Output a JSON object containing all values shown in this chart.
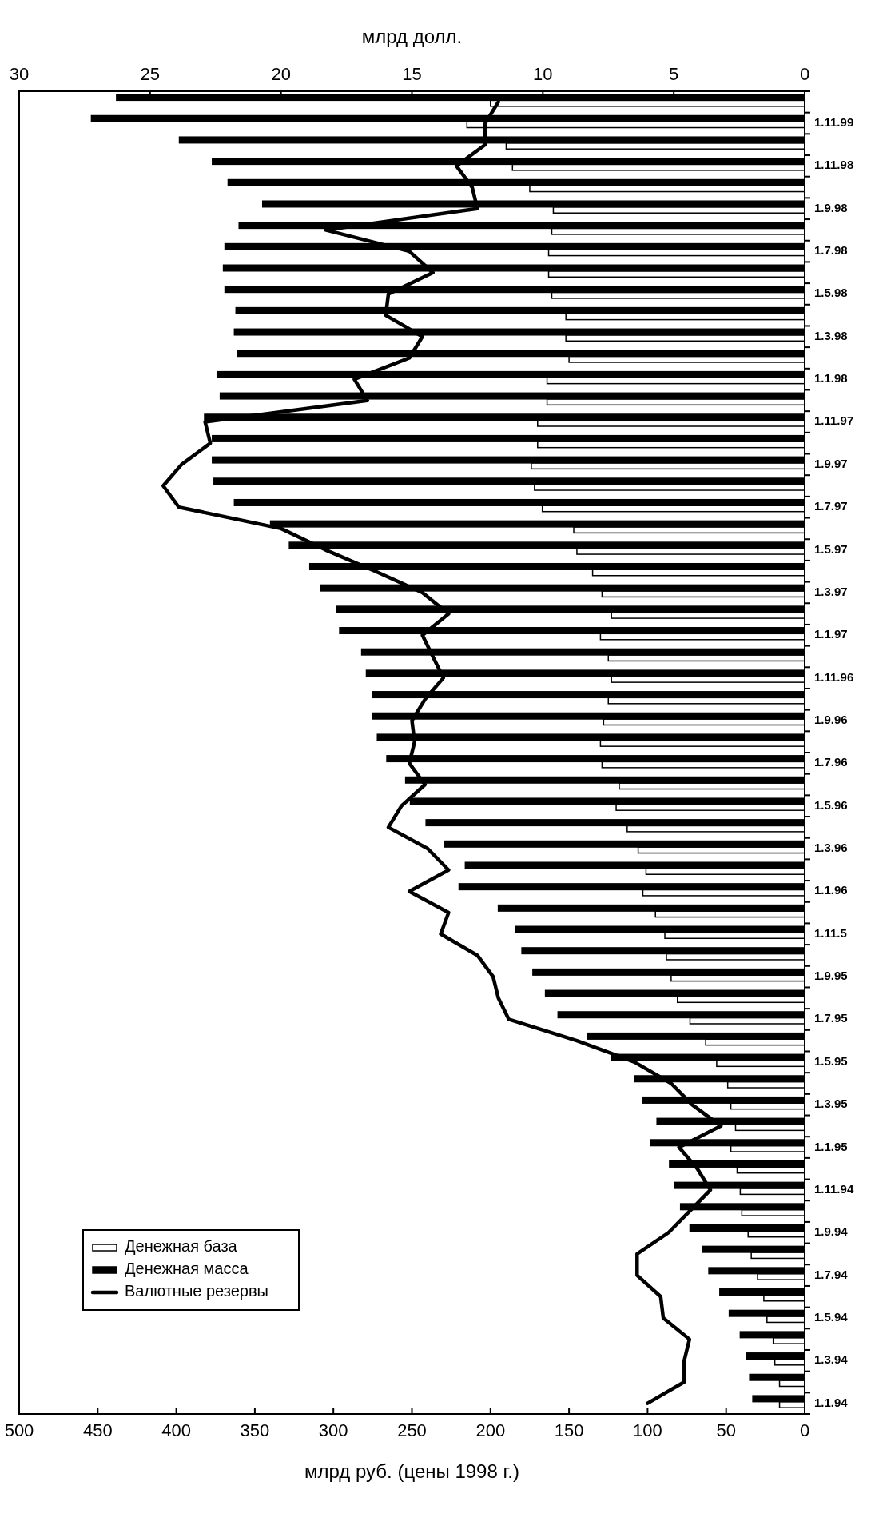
{
  "chart_data": {
    "type": "bar",
    "orientation": "horizontal",
    "xlabel": "млрд  руб. (цены 1998 г.)",
    "x2label": "млрд  долл.",
    "categories": [
      null,
      "1.11.99",
      null,
      "1.11.98",
      null,
      "1.9.98",
      null,
      "1.7.98",
      null,
      "1.5.98",
      null,
      "1.3.98",
      null,
      "1.1.98",
      null,
      "1.11.97",
      null,
      "1.9.97",
      null,
      "1.7.97",
      null,
      "1.5.97",
      null,
      "1.3.97",
      null,
      "1.1.97",
      null,
      "1.11.96",
      null,
      "1.9.96",
      null,
      "1.7.96",
      null,
      "1.5.96",
      null,
      "1.3.96",
      null,
      "1.1.96",
      null,
      "1.11.5",
      null,
      "1.9.95",
      null,
      "1.7.95",
      null,
      "1.5.95",
      null,
      "1.3.95",
      null,
      "1.1.95",
      null,
      "1.11.94",
      null,
      "1.9.94",
      null,
      "1.7.94",
      null,
      "1.5.94",
      null,
      "1.3.94",
      null,
      "1.1.94"
    ],
    "series": [
      {
        "name": "Денежная база",
        "color": "#ffffff",
        "values": [
          200,
          215,
          190,
          186,
          175,
          160,
          161,
          163,
          163,
          161,
          152,
          152,
          150,
          164,
          164,
          170,
          170,
          174,
          172,
          167,
          147,
          145,
          135,
          129,
          123,
          130,
          125,
          123,
          125,
          128,
          130,
          129,
          118,
          120,
          113,
          106,
          101,
          103,
          95,
          89,
          88,
          85,
          81,
          73,
          63,
          56,
          49,
          47,
          44,
          47,
          43,
          41,
          40,
          36,
          34,
          30,
          26,
          24,
          20,
          19,
          16,
          16
        ]
      },
      {
        "name": "Денежная масса",
        "color": "#000000",
        "values": [
          438,
          454,
          398,
          377,
          367,
          345,
          360,
          369,
          370,
          369,
          362,
          363,
          361,
          374,
          372,
          382,
          377,
          377,
          376,
          363,
          340,
          328,
          315,
          308,
          298,
          296,
          282,
          279,
          275,
          275,
          272,
          266,
          254,
          251,
          241,
          229,
          216,
          220,
          195,
          184,
          180,
          173,
          165,
          157,
          138,
          123,
          108,
          103,
          94,
          98,
          86,
          83,
          79,
          73,
          65,
          61,
          54,
          48,
          41,
          37,
          35,
          33
        ]
      },
      {
        "name": "Валютные резервы",
        "type": "line",
        "axis": "x2",
        "color": "#000000",
        "values": [
          11.7,
          12.2,
          12.2,
          13.3,
          12.7,
          12.5,
          18.3,
          15.1,
          14.2,
          15.9,
          16.0,
          14.6,
          15.1,
          17.2,
          16.7,
          22.9,
          22.7,
          23.8,
          24.5,
          23.9,
          20.0,
          18.3,
          16.4,
          14.6,
          13.6,
          14.6,
          14.2,
          13.8,
          14.5,
          15.0,
          14.9,
          15.1,
          14.5,
          15.4,
          15.9,
          14.4,
          13.6,
          15.1,
          13.6,
          13.9,
          12.5,
          11.9,
          11.7,
          11.3,
          8.7,
          6.5,
          5.1,
          4.3,
          3.2,
          4.8,
          4.1,
          3.6,
          4.4,
          5.2,
          6.4,
          6.4,
          5.5,
          5.4,
          4.4,
          4.6,
          4.6,
          6.0
        ]
      }
    ],
    "xlim": [
      500,
      0
    ],
    "xticks": [
      500,
      450,
      400,
      350,
      300,
      250,
      200,
      150,
      100,
      50,
      0
    ],
    "x2lim": [
      30,
      0
    ],
    "x2ticks": [
      30,
      25,
      20,
      15,
      10,
      5,
      0
    ],
    "legend": "bottom left"
  }
}
